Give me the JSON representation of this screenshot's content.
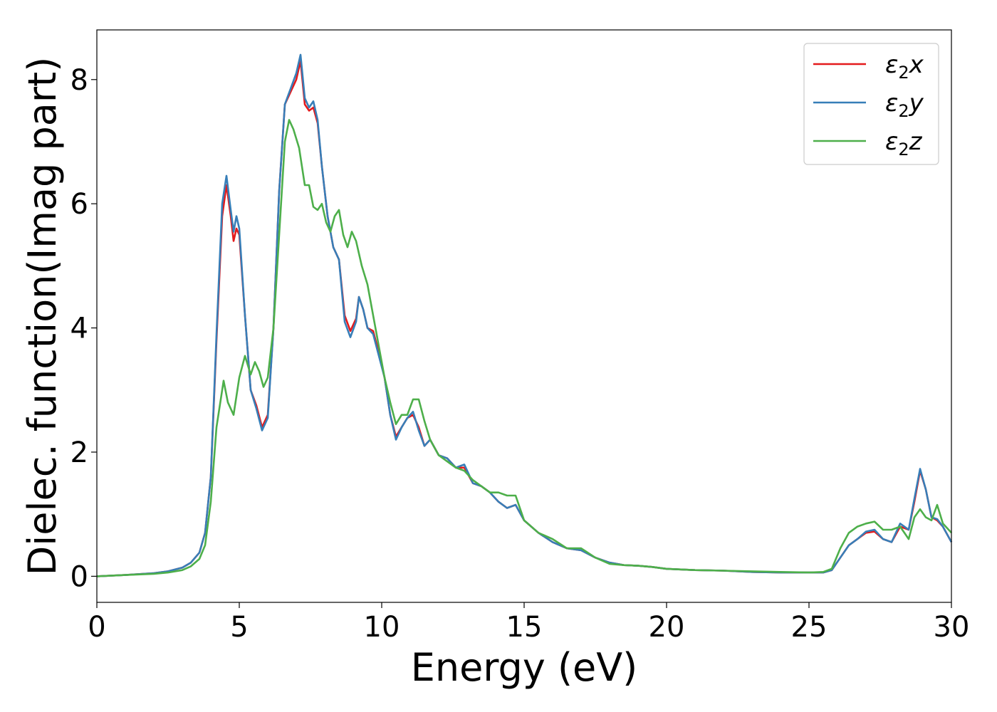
{
  "chart_data": {
    "type": "line",
    "title": "",
    "xlabel": "Energy (eV)",
    "ylabel": "Dielec. function(Imag part)",
    "xlim": [
      0,
      30
    ],
    "ylim": [
      -0.42,
      8.8
    ],
    "xticks": [
      0,
      5,
      10,
      15,
      20,
      25,
      30
    ],
    "yticks": [
      0,
      2,
      4,
      6,
      8
    ],
    "grid": false,
    "legend": "top-right",
    "series": [
      {
        "name": "ε₂x",
        "name_main": "ε",
        "name_sub": "2",
        "name_tail": "x",
        "color": "#e41a1c",
        "x": [
          0,
          1,
          2,
          2.5,
          3,
          3.3,
          3.6,
          3.8,
          4.0,
          4.2,
          4.4,
          4.55,
          4.7,
          4.8,
          4.9,
          5.0,
          5.2,
          5.4,
          5.6,
          5.8,
          6.0,
          6.2,
          6.4,
          6.6,
          6.8,
          7.0,
          7.15,
          7.3,
          7.45,
          7.6,
          7.75,
          7.9,
          8.1,
          8.3,
          8.5,
          8.7,
          8.9,
          9.1,
          9.2,
          9.35,
          9.5,
          9.7,
          9.9,
          10.1,
          10.3,
          10.5,
          10.7,
          10.9,
          11.1,
          11.3,
          11.5,
          11.7,
          12.0,
          12.3,
          12.6,
          12.9,
          13.2,
          13.5,
          13.8,
          14.1,
          14.4,
          14.7,
          15.0,
          15.5,
          16.0,
          16.5,
          17.0,
          17.5,
          18.0,
          18.5,
          19.0,
          19.5,
          20.0,
          21.0,
          22.0,
          23.0,
          24.0,
          25.0,
          25.5,
          25.8,
          26.1,
          26.4,
          26.7,
          27.0,
          27.3,
          27.6,
          27.9,
          28.2,
          28.5,
          28.7,
          28.9,
          29.1,
          29.3,
          29.5,
          29.7,
          30.0
        ],
        "y": [
          0.0,
          0.02,
          0.05,
          0.08,
          0.14,
          0.22,
          0.38,
          0.7,
          1.6,
          3.8,
          5.8,
          6.3,
          5.8,
          5.4,
          5.6,
          5.5,
          4.2,
          3.0,
          2.75,
          2.4,
          2.6,
          4.0,
          6.2,
          7.6,
          7.8,
          8.0,
          8.3,
          7.6,
          7.5,
          7.55,
          7.3,
          6.6,
          5.8,
          5.3,
          5.1,
          4.2,
          3.95,
          4.15,
          4.5,
          4.3,
          4.0,
          3.95,
          3.6,
          3.2,
          2.6,
          2.25,
          2.4,
          2.55,
          2.6,
          2.4,
          2.1,
          2.2,
          1.95,
          1.9,
          1.75,
          1.75,
          1.5,
          1.45,
          1.35,
          1.2,
          1.1,
          1.15,
          0.9,
          0.7,
          0.55,
          0.45,
          0.42,
          0.3,
          0.22,
          0.18,
          0.17,
          0.15,
          0.12,
          0.1,
          0.09,
          0.07,
          0.06,
          0.06,
          0.06,
          0.1,
          0.3,
          0.5,
          0.6,
          0.7,
          0.72,
          0.6,
          0.55,
          0.8,
          0.75,
          1.2,
          1.7,
          1.4,
          0.95,
          0.9,
          0.8,
          0.55
        ]
      },
      {
        "name": "ε₂y",
        "name_main": "ε",
        "name_sub": "2",
        "name_tail": "y",
        "color": "#377eb8",
        "x": [
          0,
          1,
          2,
          2.5,
          3,
          3.3,
          3.6,
          3.8,
          4.0,
          4.2,
          4.4,
          4.55,
          4.7,
          4.8,
          4.9,
          5.0,
          5.2,
          5.4,
          5.6,
          5.8,
          6.0,
          6.2,
          6.4,
          6.6,
          6.8,
          7.0,
          7.15,
          7.3,
          7.45,
          7.6,
          7.75,
          7.9,
          8.1,
          8.3,
          8.5,
          8.7,
          8.9,
          9.1,
          9.2,
          9.35,
          9.5,
          9.7,
          9.9,
          10.1,
          10.3,
          10.5,
          10.7,
          10.9,
          11.1,
          11.3,
          11.5,
          11.7,
          12.0,
          12.3,
          12.6,
          12.9,
          13.2,
          13.5,
          13.8,
          14.1,
          14.4,
          14.7,
          15.0,
          15.5,
          16.0,
          16.5,
          17.0,
          17.5,
          18.0,
          18.5,
          19.0,
          19.5,
          20.0,
          21.0,
          22.0,
          23.0,
          24.0,
          25.0,
          25.5,
          25.8,
          26.1,
          26.4,
          26.7,
          27.0,
          27.3,
          27.6,
          27.9,
          28.2,
          28.5,
          28.7,
          28.9,
          29.1,
          29.3,
          29.5,
          29.7,
          30.0
        ],
        "y": [
          0.0,
          0.02,
          0.05,
          0.08,
          0.14,
          0.22,
          0.38,
          0.7,
          1.6,
          3.9,
          6.0,
          6.45,
          5.9,
          5.55,
          5.8,
          5.6,
          4.2,
          3.0,
          2.7,
          2.35,
          2.55,
          4.0,
          6.2,
          7.6,
          7.85,
          8.1,
          8.4,
          7.7,
          7.55,
          7.65,
          7.35,
          6.6,
          5.8,
          5.3,
          5.1,
          4.1,
          3.85,
          4.1,
          4.5,
          4.3,
          4.0,
          3.9,
          3.55,
          3.2,
          2.6,
          2.2,
          2.4,
          2.55,
          2.65,
          2.35,
          2.1,
          2.2,
          1.95,
          1.9,
          1.75,
          1.8,
          1.5,
          1.45,
          1.35,
          1.2,
          1.1,
          1.15,
          0.9,
          0.7,
          0.55,
          0.45,
          0.42,
          0.3,
          0.22,
          0.18,
          0.17,
          0.15,
          0.12,
          0.1,
          0.09,
          0.07,
          0.06,
          0.06,
          0.06,
          0.1,
          0.3,
          0.5,
          0.6,
          0.72,
          0.75,
          0.6,
          0.55,
          0.85,
          0.75,
          1.25,
          1.73,
          1.4,
          0.95,
          0.92,
          0.8,
          0.55
        ]
      },
      {
        "name": "ε₂z",
        "name_main": "ε",
        "name_sub": "2",
        "name_tail": "z",
        "color": "#4daf4a",
        "x": [
          0,
          1,
          2,
          2.5,
          3,
          3.3,
          3.6,
          3.8,
          4.0,
          4.2,
          4.45,
          4.6,
          4.8,
          5.0,
          5.2,
          5.4,
          5.55,
          5.7,
          5.85,
          6.0,
          6.2,
          6.4,
          6.6,
          6.75,
          6.9,
          7.1,
          7.3,
          7.45,
          7.6,
          7.75,
          7.9,
          8.05,
          8.2,
          8.35,
          8.5,
          8.65,
          8.8,
          8.95,
          9.1,
          9.3,
          9.5,
          9.7,
          9.9,
          10.1,
          10.3,
          10.5,
          10.7,
          10.9,
          11.1,
          11.3,
          11.5,
          11.7,
          12.0,
          12.3,
          12.6,
          12.9,
          13.2,
          13.5,
          13.8,
          14.1,
          14.4,
          14.7,
          15.0,
          15.5,
          16.0,
          16.5,
          17.0,
          17.5,
          18.0,
          18.5,
          19.0,
          19.5,
          20.0,
          21.0,
          22.0,
          23.0,
          24.0,
          25.0,
          25.5,
          25.8,
          26.1,
          26.4,
          26.7,
          27.0,
          27.3,
          27.6,
          27.9,
          28.2,
          28.5,
          28.7,
          28.9,
          29.1,
          29.3,
          29.5,
          29.7,
          30.0
        ],
        "y": [
          0.0,
          0.02,
          0.04,
          0.06,
          0.1,
          0.16,
          0.28,
          0.5,
          1.2,
          2.4,
          3.15,
          2.8,
          2.6,
          3.2,
          3.55,
          3.25,
          3.45,
          3.3,
          3.05,
          3.2,
          4.0,
          5.5,
          7.0,
          7.35,
          7.2,
          6.9,
          6.3,
          6.3,
          5.95,
          5.9,
          6.0,
          5.7,
          5.55,
          5.8,
          5.9,
          5.5,
          5.3,
          5.55,
          5.4,
          5.0,
          4.7,
          4.2,
          3.7,
          3.2,
          2.8,
          2.45,
          2.6,
          2.6,
          2.85,
          2.85,
          2.5,
          2.2,
          1.95,
          1.85,
          1.75,
          1.7,
          1.55,
          1.45,
          1.35,
          1.35,
          1.3,
          1.3,
          0.9,
          0.7,
          0.6,
          0.45,
          0.45,
          0.3,
          0.2,
          0.18,
          0.17,
          0.15,
          0.12,
          0.1,
          0.09,
          0.08,
          0.07,
          0.06,
          0.07,
          0.12,
          0.45,
          0.7,
          0.8,
          0.85,
          0.88,
          0.75,
          0.75,
          0.8,
          0.6,
          0.95,
          1.08,
          0.95,
          0.9,
          1.15,
          0.85,
          0.7
        ]
      }
    ]
  }
}
